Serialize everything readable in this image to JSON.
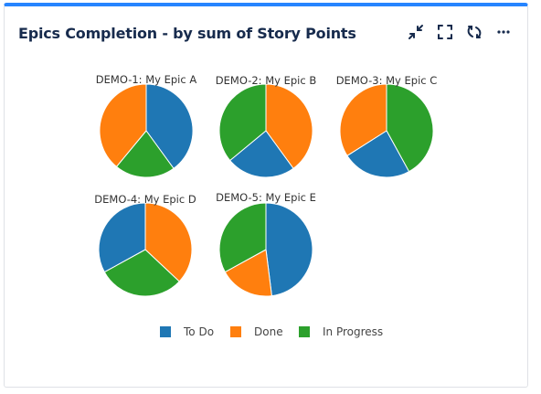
{
  "gadget": {
    "title": "Epics Completion - by sum of Story Points",
    "accent_color": "#2684ff",
    "tools": [
      {
        "icon": "minimize-icon"
      },
      {
        "icon": "fullscreen-icon"
      },
      {
        "icon": "refresh-icon"
      },
      {
        "icon": "more-icon"
      }
    ]
  },
  "chart_data": {
    "type": "pie",
    "categories": [
      "To Do",
      "Done",
      "In Progress"
    ],
    "colors": {
      "To Do": "#1f77b4",
      "Done": "#ff7f0e",
      "In Progress": "#2ca02c"
    },
    "legend": "bottom",
    "pies": [
      {
        "label": "DEMO-1: My Epic A",
        "values": {
          "To Do": 40,
          "In Progress": 21,
          "Done": 39
        }
      },
      {
        "label": "DEMO-2: My Epic B",
        "values": {
          "Done": 40,
          "To Do": 24,
          "In Progress": 36
        }
      },
      {
        "label": "DEMO-3: My Epic C",
        "values": {
          "In Progress": 42,
          "To Do": 24,
          "Done": 34
        }
      },
      {
        "label": "DEMO-4: My Epic D",
        "values": {
          "Done": 37,
          "In Progress": 30,
          "To Do": 33
        }
      },
      {
        "label": "DEMO-5: My Epic E",
        "values": {
          "To Do": 48,
          "Done": 19,
          "In Progress": 33
        }
      }
    ]
  }
}
